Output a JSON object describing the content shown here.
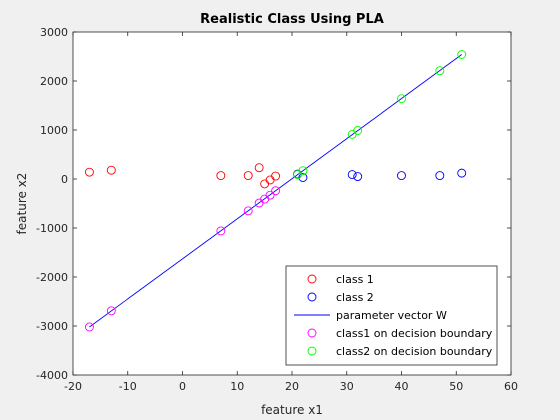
{
  "chart_data": {
    "type": "scatter",
    "title": "Realistic Class Using PLA",
    "xlabel": "feature x1",
    "ylabel": "feature x2",
    "xlim": [
      -20,
      60
    ],
    "ylim": [
      -4000,
      3000
    ],
    "xticks": [
      -20,
      -10,
      0,
      10,
      20,
      30,
      40,
      50,
      60
    ],
    "yticks": [
      -4000,
      -3000,
      -2000,
      -1000,
      0,
      1000,
      2000,
      3000
    ],
    "grid": false,
    "legend_position": "bottom-right",
    "series": [
      {
        "name": "class 1",
        "kind": "scatter",
        "marker": "circle",
        "color": "#ff0000",
        "points": [
          [
            -17,
            140
          ],
          [
            -13,
            180
          ],
          [
            7,
            70
          ],
          [
            12,
            70
          ],
          [
            14,
            230
          ],
          [
            15,
            -100
          ],
          [
            16,
            -20
          ],
          [
            17,
            60
          ]
        ]
      },
      {
        "name": "class 2",
        "kind": "scatter",
        "marker": "circle",
        "color": "#0000ff",
        "points": [
          [
            21,
            100
          ],
          [
            22,
            30
          ],
          [
            31,
            90
          ],
          [
            32,
            50
          ],
          [
            40,
            70
          ],
          [
            47,
            70
          ],
          [
            51,
            120
          ]
        ]
      },
      {
        "name": "parameter vector W",
        "kind": "line",
        "color": "#0000ff",
        "points": [
          [
            -17,
            -3020
          ],
          [
            51,
            2540
          ]
        ]
      },
      {
        "name": "class1 on decision boundary",
        "kind": "scatter",
        "marker": "circle",
        "color": "#ff00ff",
        "points": [
          [
            -17,
            -3020
          ],
          [
            -13,
            -2690
          ],
          [
            7,
            -1060
          ],
          [
            12,
            -650
          ],
          [
            14,
            -490
          ],
          [
            15,
            -410
          ],
          [
            16,
            -330
          ],
          [
            17,
            -240
          ]
        ]
      },
      {
        "name": "class2 on decision boundary",
        "kind": "scatter",
        "marker": "circle",
        "color": "#00ff00",
        "points": [
          [
            21,
            90
          ],
          [
            22,
            170
          ],
          [
            31,
            910
          ],
          [
            32,
            990
          ],
          [
            40,
            1640
          ],
          [
            47,
            2210
          ],
          [
            51,
            2540
          ]
        ]
      }
    ]
  }
}
